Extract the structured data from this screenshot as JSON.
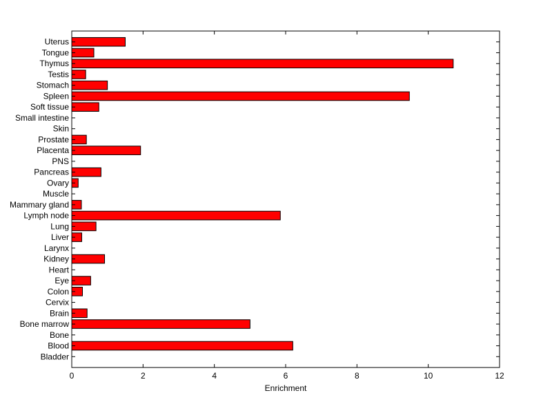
{
  "chart_data": {
    "type": "bar",
    "orientation": "horizontal",
    "title": "",
    "xlabel": "Enrichment",
    "ylabel": "",
    "xlim": [
      0,
      12
    ],
    "xticks": [
      0,
      2,
      4,
      6,
      8,
      10,
      12
    ],
    "bar_color": "#ff0000",
    "bar_edge_color": "#000000",
    "grid": false,
    "categories": [
      "Bladder",
      "Blood",
      "Bone",
      "Bone marrow",
      "Brain",
      "Cervix",
      "Colon",
      "Eye",
      "Heart",
      "Kidney",
      "Larynx",
      "Liver",
      "Lung",
      "Lymph node",
      "Mammary gland",
      "Muscle",
      "Ovary",
      "Pancreas",
      "PNS",
      "Placenta",
      "Prostate",
      "Skin",
      "Small intestine",
      "Soft tissue",
      "Spleen",
      "Stomach",
      "Testis",
      "Thymus",
      "Tongue",
      "Uterus"
    ],
    "values": [
      0,
      6.2,
      0,
      5.0,
      0.43,
      0,
      0.3,
      0.53,
      0,
      0.92,
      0,
      0.28,
      0.68,
      5.85,
      0.27,
      0,
      0.18,
      0.82,
      0,
      1.93,
      0.41,
      0,
      0,
      0.76,
      9.47,
      1.0,
      0.39,
      10.7,
      0.62,
      1.5
    ]
  }
}
